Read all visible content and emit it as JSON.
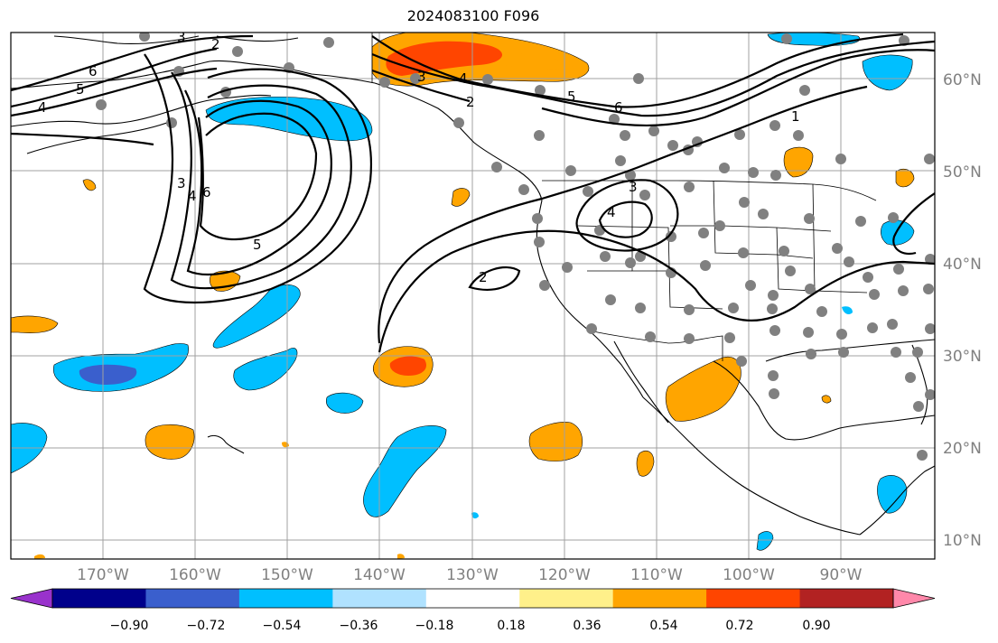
{
  "title": "2024083100 F096",
  "lon_labels": [
    "170°W",
    "160°W",
    "150°W",
    "140°W",
    "130°W",
    "120°W",
    "110°W",
    "100°W",
    "90°W"
  ],
  "lat_labels": [
    "60°N",
    "50°N",
    "40°N",
    "30°N",
    "20°N",
    "10°N"
  ],
  "colorbar": {
    "ticks": [
      "−0.90",
      "−0.72",
      "−0.54",
      "−0.36",
      "−0.18",
      "0.18",
      "0.36",
      "0.54",
      "0.72",
      "0.90"
    ],
    "colors": [
      "#9932cc",
      "#00008b",
      "#3a5fcd",
      "#00bfff",
      "#b0e2ff",
      "#ffffff",
      "#fff08a",
      "#ffa500",
      "#ff4500",
      "#b22222",
      "#ff88aa"
    ]
  },
  "contour_labels": [
    "6",
    "5",
    "4",
    "3",
    "2",
    "3",
    "4",
    "5",
    "6",
    "2",
    "3",
    "4",
    "5",
    "6",
    "1",
    "2",
    "3",
    "4"
  ],
  "fill_colors": {
    "light_blue": "#b0e2ff",
    "blue": "#00bfff",
    "dark_blue": "#3a5fcd",
    "light_orange": "#fff08a",
    "orange": "#ffa500",
    "red_orange": "#ff4500"
  }
}
